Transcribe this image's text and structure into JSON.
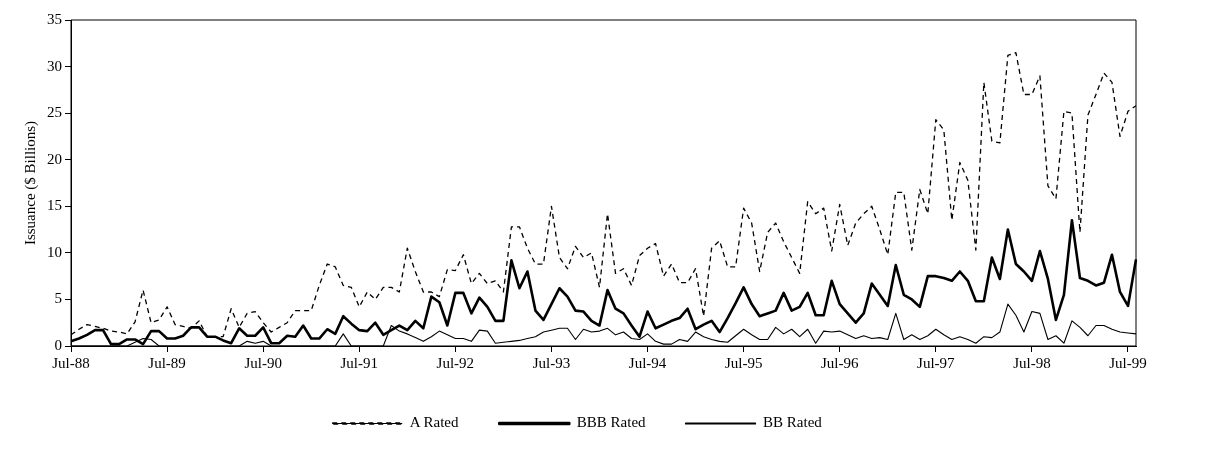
{
  "chart_data": {
    "type": "line",
    "ylabel": "Issuance ($ Billions)",
    "categories": [
      "Jul-88",
      null,
      null,
      null,
      null,
      null,
      null,
      null,
      null,
      null,
      null,
      null,
      "Jul-89",
      null,
      null,
      null,
      null,
      null,
      null,
      null,
      null,
      null,
      null,
      null,
      "Jul-90",
      null,
      null,
      null,
      null,
      null,
      null,
      null,
      null,
      null,
      null,
      null,
      "Jul-91",
      null,
      null,
      null,
      null,
      null,
      null,
      null,
      null,
      null,
      null,
      null,
      "Jul-92",
      null,
      null,
      null,
      null,
      null,
      null,
      null,
      null,
      null,
      null,
      null,
      "Jul-93",
      null,
      null,
      null,
      null,
      null,
      null,
      null,
      null,
      null,
      null,
      null,
      "Jul-94",
      null,
      null,
      null,
      null,
      null,
      null,
      null,
      null,
      null,
      null,
      null,
      "Jul-95",
      null,
      null,
      null,
      null,
      null,
      null,
      null,
      null,
      null,
      null,
      null,
      "Jul-96",
      null,
      null,
      null,
      null,
      null,
      null,
      null,
      null,
      null,
      null,
      null,
      "Jul-97",
      null,
      null,
      null,
      null,
      null,
      null,
      null,
      null,
      null,
      null,
      null,
      "Jul-98",
      null,
      null,
      null,
      null,
      null,
      null,
      null,
      null,
      null,
      null,
      null,
      "Jul-99",
      null
    ],
    "ylim": [
      0,
      35
    ],
    "yticks": [
      0,
      5,
      10,
      15,
      20,
      25,
      30,
      35
    ],
    "legend": "bottom",
    "grid": false,
    "marker": "none",
    "series": [
      {
        "name": "A Rated",
        "color": "#000000",
        "line_style": "dashed",
        "values": [
          1.2,
          1.8,
          2.3,
          2.1,
          1.9,
          1.6,
          1.5,
          1.3,
          2.6,
          6.0,
          2.5,
          2.8,
          4.2,
          2.3,
          2.1,
          1.9,
          2.7,
          1.0,
          1.0,
          1.0,
          4.0,
          2.0,
          3.5,
          3.7,
          2.5,
          1.5,
          2.0,
          2.5,
          3.8,
          3.8,
          3.8,
          6.5,
          8.8,
          8.5,
          6.5,
          6.3,
          4.2,
          5.8,
          5.0,
          6.3,
          6.3,
          5.8,
          10.5,
          8.0,
          5.8,
          5.8,
          5.3,
          8.2,
          8.1,
          9.8,
          6.7,
          7.8,
          6.7,
          7.0,
          5.8,
          12.8,
          12.8,
          10.5,
          8.8,
          8.8,
          15.0,
          9.5,
          8.3,
          10.7,
          9.5,
          10.0,
          6.3,
          14.2,
          7.8,
          8.3,
          6.5,
          9.7,
          10.5,
          11.0,
          7.5,
          8.8,
          6.8,
          6.8,
          8.3,
          3.2,
          10.5,
          11.3,
          8.5,
          8.5,
          14.8,
          13.2,
          8.0,
          12.2,
          13.2,
          11.2,
          9.5,
          7.8,
          15.5,
          14.2,
          14.8,
          10.2,
          15.2,
          10.8,
          13.2,
          14.2,
          15.0,
          12.5,
          9.8,
          16.5,
          16.5,
          10.3,
          16.8,
          14.2,
          24.3,
          23.2,
          13.5,
          19.7,
          17.8,
          10.3,
          28.3,
          22.0,
          21.8,
          31.2,
          31.5,
          27.0,
          27.0,
          29.0,
          17.2,
          15.8,
          25.2,
          25.0,
          12.2,
          24.8,
          27.0,
          29.3,
          28.3,
          22.5,
          25.2,
          25.8
        ]
      },
      {
        "name": "BBB Rated",
        "color": "#000000",
        "line_style": "solid",
        "values": [
          0.5,
          0.8,
          1.2,
          1.7,
          1.7,
          0.2,
          0.2,
          0.7,
          0.7,
          0.2,
          1.6,
          1.6,
          0.8,
          0.8,
          1.1,
          2.0,
          2.0,
          1.0,
          1.0,
          0.6,
          0.3,
          1.9,
          1.1,
          1.1,
          2.0,
          0.3,
          0.3,
          1.1,
          1.0,
          2.2,
          0.8,
          0.8,
          1.8,
          1.3,
          3.2,
          2.4,
          1.7,
          1.6,
          2.5,
          1.2,
          1.7,
          2.2,
          1.7,
          2.7,
          1.9,
          5.3,
          4.7,
          2.2,
          5.7,
          5.7,
          3.5,
          5.2,
          4.2,
          2.7,
          2.7,
          9.2,
          6.2,
          8.0,
          3.8,
          2.8,
          4.5,
          6.2,
          5.3,
          3.8,
          3.7,
          2.7,
          2.2,
          6.0,
          4.0,
          3.5,
          2.2,
          1.0,
          3.7,
          1.9,
          2.3,
          2.7,
          3.0,
          4.0,
          1.8,
          2.3,
          2.7,
          1.5,
          3.0,
          4.6,
          6.3,
          4.5,
          3.2,
          3.5,
          3.8,
          5.7,
          3.8,
          4.2,
          5.7,
          3.3,
          3.3,
          7.0,
          4.5,
          3.5,
          2.5,
          3.5,
          6.7,
          5.5,
          4.3,
          8.7,
          5.5,
          5.0,
          4.2,
          7.5,
          7.5,
          7.3,
          7.0,
          8.0,
          7.0,
          4.8,
          4.8,
          9.5,
          7.2,
          12.5,
          8.8,
          8.0,
          7.0,
          10.2,
          7.2,
          2.8,
          5.5,
          13.5,
          7.3,
          7.0,
          6.5,
          6.8,
          9.8,
          5.8,
          4.3,
          9.3
        ]
      },
      {
        "name": "BB Rated",
        "color": "#000000",
        "line_style": "solid",
        "values": [
          0,
          0,
          0,
          0,
          0,
          0,
          0,
          0,
          0.4,
          0.8,
          0.7,
          0,
          0,
          0,
          0,
          0,
          0,
          0,
          0,
          0,
          0,
          0,
          0.5,
          0.3,
          0.5,
          0,
          0,
          0,
          0,
          0,
          0,
          0,
          0,
          0,
          1.3,
          0,
          0,
          0,
          0,
          0,
          2.2,
          1.6,
          1.3,
          0.9,
          0.5,
          1.0,
          1.6,
          1.2,
          0.8,
          0.8,
          0.5,
          1.7,
          1.6,
          0.3,
          0.4,
          0.5,
          0.6,
          0.8,
          1.0,
          1.5,
          1.7,
          1.9,
          1.9,
          0.7,
          1.8,
          1.5,
          1.6,
          1.9,
          1.2,
          1.5,
          0.8,
          0.7,
          1.3,
          0.5,
          0.2,
          0.2,
          0.7,
          0.5,
          1.5,
          1.0,
          0.7,
          0.5,
          0.4,
          1.1,
          1.8,
          1.2,
          0.7,
          0.7,
          2.0,
          1.3,
          1.8,
          1.0,
          1.8,
          0.3,
          1.6,
          1.5,
          1.6,
          1.2,
          0.8,
          1.1,
          0.8,
          0.9,
          0.7,
          3.5,
          0.7,
          1.2,
          0.7,
          1.1,
          1.8,
          1.2,
          0.7,
          1.0,
          0.7,
          0.3,
          1.0,
          0.9,
          1.5,
          4.5,
          3.3,
          1.5,
          3.7,
          3.5,
          0.7,
          1.1,
          0.3,
          2.7,
          2.0,
          1.1,
          2.2,
          2.2,
          1.8,
          1.5,
          1.4,
          1.3
        ]
      }
    ]
  }
}
